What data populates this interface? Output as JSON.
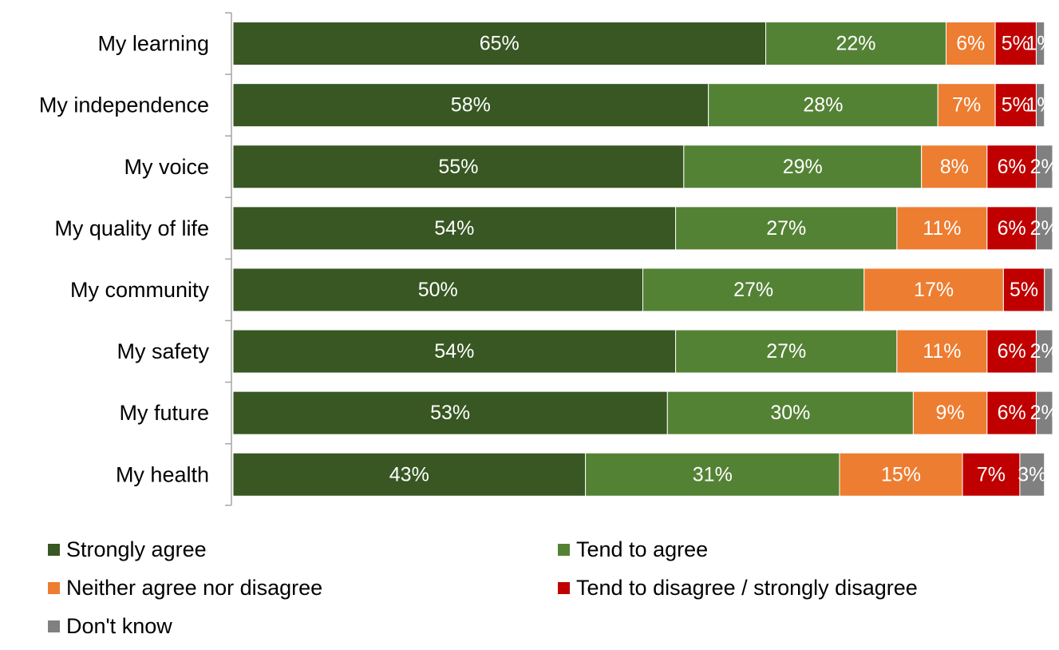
{
  "chart_data": {
    "type": "bar",
    "orientation": "horizontal",
    "stacked": true,
    "categories": [
      "My learning",
      "My independence",
      "My voice",
      "My quality of life",
      "My community",
      "My safety",
      "My future",
      "My health"
    ],
    "series": [
      {
        "name": "Strongly agree",
        "color": "#385723",
        "values": [
          65,
          58,
          55,
          54,
          50,
          54,
          53,
          43
        ],
        "labels": [
          "65%",
          "58%",
          "55%",
          "54%",
          "50%",
          "54%",
          "53%",
          "43%"
        ]
      },
      {
        "name": "Tend to agree",
        "color": "#548235",
        "values": [
          22,
          28,
          29,
          27,
          27,
          27,
          30,
          31
        ],
        "labels": [
          "22%",
          "28%",
          "29%",
          "27%",
          "27%",
          "27%",
          "30%",
          "31%"
        ]
      },
      {
        "name": "Neither agree nor disagree",
        "color": "#ED7D31",
        "values": [
          6,
          7,
          8,
          11,
          17,
          11,
          9,
          15
        ],
        "labels": [
          "6%",
          "7%",
          "8%",
          "11%",
          "17%",
          "11%",
          "9%",
          "15%"
        ]
      },
      {
        "name": "Tend to disagree / strongly disagree",
        "color": "#C00000",
        "values": [
          5,
          5,
          6,
          6,
          5,
          6,
          6,
          7
        ],
        "labels": [
          "5%",
          "5%",
          "6%",
          "6%",
          "5%",
          "6%",
          "6%",
          "7%"
        ]
      },
      {
        "name": "Don't know",
        "color": "#808080",
        "values": [
          1,
          1,
          2,
          2,
          1,
          2,
          2,
          3
        ],
        "labels": [
          "1%",
          "1%",
          "2%",
          "2%",
          "",
          "2%",
          "2%",
          "3%"
        ]
      }
    ],
    "xlim": [
      0,
      100
    ],
    "grid": false,
    "legend_position": "bottom",
    "title": "",
    "xlabel": "",
    "ylabel": ""
  }
}
